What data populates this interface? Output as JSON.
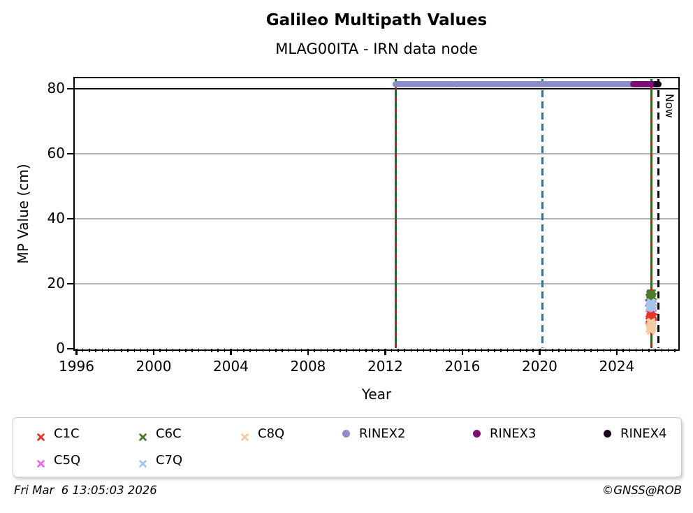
{
  "title": "Galileo Multipath Values",
  "subtitle": "MLAG00ITA - IRN data node",
  "footer": {
    "timestamp": "Fri Mar  6 13:05:03 2026",
    "credit": "©GNSS@ROB"
  },
  "legend": {
    "items": [
      {
        "label": "C1C",
        "marker": "x",
        "color": "#e8352a"
      },
      {
        "label": "C6C",
        "marker": "x",
        "color": "#4f7a2b"
      },
      {
        "label": "C8Q",
        "marker": "x",
        "color": "#f6caa2"
      },
      {
        "label": "RINEX2",
        "marker": "circle",
        "color": "#8d8dc8"
      },
      {
        "label": "RINEX3",
        "marker": "circle",
        "color": "#7a1076"
      },
      {
        "label": "RINEX4",
        "marker": "circle",
        "color": "#1c0622"
      },
      {
        "label": "C5Q",
        "marker": "x",
        "color": "#ea6aea"
      },
      {
        "label": "C7Q",
        "marker": "x",
        "color": "#a3c6e8"
      }
    ]
  },
  "chart_data": {
    "type": "scatter",
    "title": "Galileo Multipath Values",
    "subtitle": "MLAG00ITA - IRN data node",
    "xlabel": "Year",
    "ylabel": "MP Value (cm)",
    "xlim": [
      1995.91,
      2027.16
    ],
    "ylim": [
      0,
      83.2
    ],
    "x_major_ticks": [
      1996,
      2000,
      2004,
      2008,
      2012,
      2016,
      2020,
      2024
    ],
    "x_minor_step": 0.33333,
    "y_ticks": [
      0,
      20,
      40,
      60,
      80
    ],
    "grid_y": [
      20,
      40,
      60
    ],
    "grid_color": "#b3b3b3",
    "hline_y": 80,
    "now_label": "Now",
    "vlines": [
      {
        "x": 2012.54,
        "style": "green-red-dashed",
        "color": "#007f00",
        "color2": "#dd1111"
      },
      {
        "x": 2020.13,
        "style": "dashed",
        "color": "#1f77b4"
      },
      {
        "x": 2025.78,
        "style": "green-red-dashed",
        "color": "#007f00",
        "color2": "#dd1111"
      },
      {
        "x": 2026.14,
        "style": "dashed",
        "color": "#000000",
        "label": "Now"
      }
    ],
    "bands": [
      {
        "name": "RINEX2",
        "color": "#8d8dc8",
        "y": 81.4,
        "segments": [
          [
            2012.56,
            2015.5
          ],
          [
            2015.66,
            2018.28
          ],
          [
            2018.4,
            2024.45
          ],
          [
            2024.55,
            2024.82
          ]
        ]
      },
      {
        "name": "RINEX3",
        "color": "#7a1076",
        "y": 81.4,
        "segments": [
          [
            2024.85,
            2025.6
          ],
          [
            2025.7,
            2026.07
          ]
        ]
      },
      {
        "name": "RINEX4",
        "color": "#1c0622",
        "y": 81.4,
        "segments": [
          [
            2026.05,
            2026.13
          ]
        ]
      }
    ],
    "series": [
      {
        "name": "C5Q",
        "marker": "x",
        "color": "#ea6aea",
        "points": [
          [
            2025.66,
            14.9
          ],
          [
            2025.88,
            14.5
          ],
          [
            2025.67,
            13.2
          ],
          [
            2025.87,
            13.4
          ],
          [
            2025.77,
            15.4
          ],
          [
            2025.8,
            12.7
          ]
        ]
      },
      {
        "name": "C6C",
        "marker": "x",
        "color": "#4f7a2b",
        "points": [
          [
            2025.71,
            16.3
          ],
          [
            2025.75,
            16.9
          ],
          [
            2025.79,
            17.4
          ],
          [
            2025.83,
            17.9
          ],
          [
            2025.73,
            17.5
          ],
          [
            2025.81,
            16.6
          ],
          [
            2025.77,
            17.1
          ],
          [
            2025.85,
            17.0
          ],
          [
            2025.69,
            16.8
          ],
          [
            2025.77,
            17.9
          ]
        ]
      },
      {
        "name": "C7Q",
        "marker": "x",
        "color": "#a3c6e8",
        "points": [
          [
            2025.71,
            13.3
          ],
          [
            2025.75,
            13.9
          ],
          [
            2025.79,
            14.4
          ],
          [
            2025.83,
            14.9
          ],
          [
            2025.73,
            14.6
          ],
          [
            2025.81,
            13.6
          ],
          [
            2025.77,
            14.1
          ],
          [
            2025.85,
            14.3
          ],
          [
            2025.69,
            14.0
          ],
          [
            2025.77,
            15.1
          ],
          [
            2025.75,
            13.0
          ]
        ]
      },
      {
        "name": "C1C",
        "marker": "x",
        "color": "#e8352a",
        "points": [
          [
            2025.7,
            9.4
          ],
          [
            2025.74,
            10.0
          ],
          [
            2025.78,
            10.5
          ],
          [
            2025.82,
            11.0
          ],
          [
            2025.72,
            10.7
          ],
          [
            2025.8,
            9.7
          ],
          [
            2025.76,
            10.2
          ],
          [
            2025.84,
            10.4
          ],
          [
            2025.68,
            10.1
          ],
          [
            2025.77,
            11.4
          ],
          [
            2025.88,
            9.5
          ],
          [
            2025.9,
            10.6
          ]
        ]
      },
      {
        "name": "C8Q",
        "marker": "x",
        "color": "#f6caa2",
        "points": [
          [
            2025.7,
            7.1
          ],
          [
            2025.74,
            7.6
          ],
          [
            2025.78,
            8.1
          ],
          [
            2025.82,
            8.6
          ],
          [
            2025.76,
            8.3
          ],
          [
            2025.84,
            7.3
          ],
          [
            2025.8,
            6.9
          ],
          [
            2025.86,
            7.9
          ],
          [
            2025.72,
            8.9
          ],
          [
            2025.78,
            9.2
          ],
          [
            2025.75,
            6.4
          ]
        ]
      }
    ]
  }
}
